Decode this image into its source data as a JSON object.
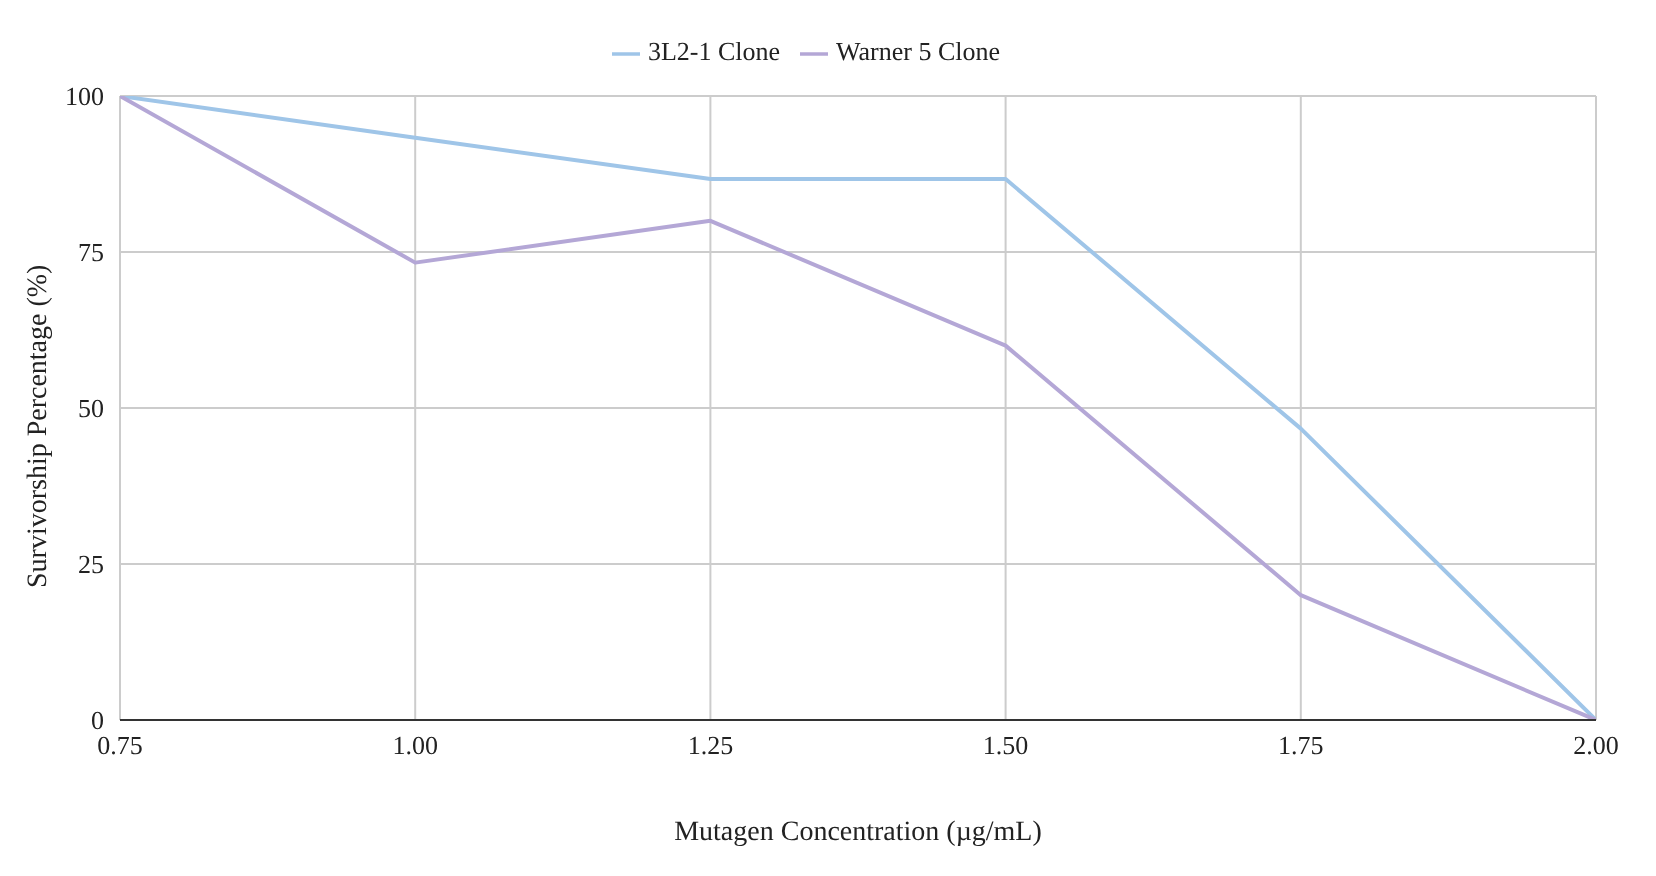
{
  "chart_data": {
    "type": "line",
    "xlabel": "Mutagen Concentration (µg/mL)",
    "ylabel": "Survivorship Percentage (%)",
    "x": [
      0.75,
      1.0,
      1.25,
      1.5,
      1.75,
      2.0
    ],
    "series": [
      {
        "name": "3L2-1 Clone",
        "color": "#9fc5e8",
        "values": [
          100,
          93.3,
          86.7,
          86.7,
          46.7,
          0
        ]
      },
      {
        "name": "Warner 5 Clone",
        "color": "#b4a7d6",
        "values": [
          100,
          73.3,
          80,
          60,
          20,
          0
        ]
      }
    ],
    "xlim": [
      0.75,
      2.0
    ],
    "xticks": [
      {
        "value": 0.75,
        "label": "0.75"
      },
      {
        "value": 1.0,
        "label": "1.00"
      },
      {
        "value": 1.25,
        "label": "1.25"
      },
      {
        "value": 1.5,
        "label": "1.50"
      },
      {
        "value": 1.75,
        "label": "1.75"
      },
      {
        "value": 2.0,
        "label": "2.00"
      }
    ],
    "ylim": [
      0,
      100
    ],
    "yticks": [
      0,
      25,
      50,
      75,
      100
    ],
    "grid": true,
    "legend": "top",
    "marker": "none",
    "line_style": "solid"
  }
}
